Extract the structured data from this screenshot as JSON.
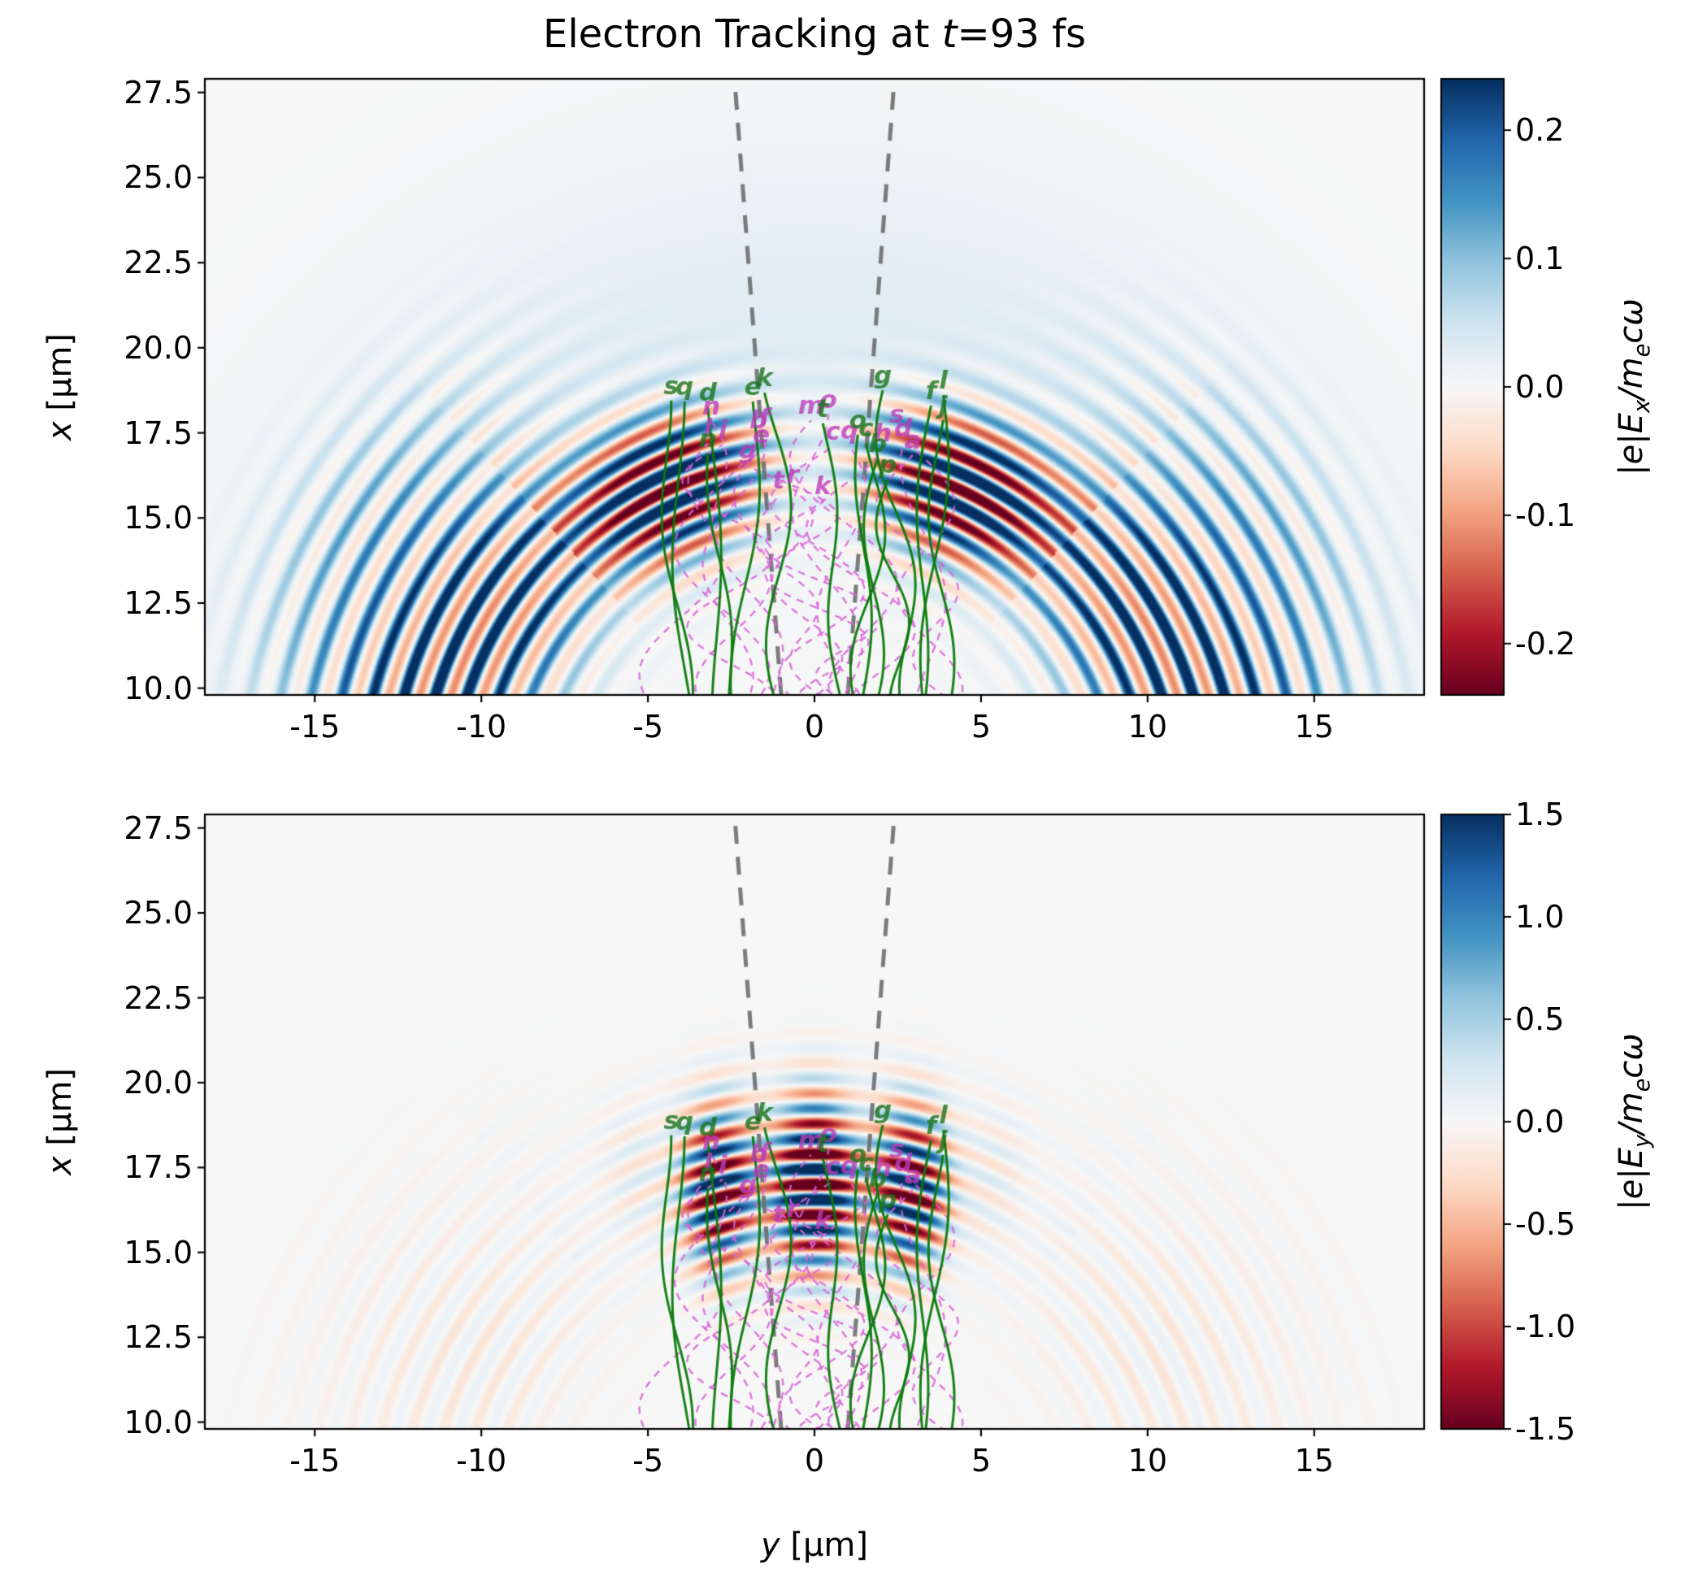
{
  "figure": {
    "title": {
      "prefix": "Electron Tracking at ",
      "var": "t",
      "suffix": "=93 fs"
    }
  },
  "chart_data": {
    "type": "heatmap",
    "title": "Electron Tracking at t=93 fs",
    "x_axis": {
      "label_var": "y",
      "label_unit": " [μm]",
      "tick_labels": [
        "-15",
        "-10",
        "-5",
        "0",
        "5",
        "10",
        "15"
      ],
      "lim": [
        -18.3,
        18.3
      ]
    },
    "y_axis": {
      "label_var": "x",
      "label_unit": " [μm]",
      "tick_labels": [
        "27.5",
        "25.0",
        "22.5",
        "20.0",
        "17.5",
        "15.0",
        "12.5",
        "10.0"
      ],
      "lim": [
        9.8,
        27.9
      ]
    },
    "panels": [
      {
        "name": "Ex",
        "field": "transverse field E_x: spherical wavefront arcs, strong side lobes, near-zero on axis",
        "colorbar": {
          "label_parts": {
            "p1": "|e|E",
            "s1": "x",
            "p2": "/m",
            "s2": "e",
            "p3": "cω"
          },
          "tick_labels": [
            "0.2",
            "0.1",
            "0.0",
            "-0.1",
            "-0.2"
          ],
          "vmin": -0.24,
          "vmax": 0.24,
          "cmap": "RdBu"
        }
      },
      {
        "name": "Ey",
        "field": "transverse field E_y: saturated stripe stack on axis, faint side arcs",
        "colorbar": {
          "label_parts": {
            "p1": "|e|E",
            "s1": "y",
            "p2": "/m",
            "s2": "e",
            "p3": "cω"
          },
          "tick_labels": [
            "1.5",
            "1.0",
            "0.5",
            "0.0",
            "-0.5",
            "-1.0",
            "-1.5"
          ],
          "vmin": -1.5,
          "vmax": 1.5,
          "cmap": "RdBu"
        }
      }
    ],
    "wave": {
      "wavelength_um": 0.9,
      "center": [
        0,
        6.2
      ]
    },
    "laser_cone": {
      "color": "#6e6e6e",
      "style": "dashed",
      "lines": [
        {
          "from": [
            -1.0,
            9.8
          ],
          "to": [
            -2.4,
            27.9
          ]
        },
        {
          "from": [
            1.0,
            9.8
          ],
          "to": [
            2.4,
            27.9
          ]
        }
      ]
    },
    "trajectories": {
      "green_solid": {
        "color": "#0a7a0a",
        "style": "solid",
        "items": [
          {
            "label": "s",
            "end": [
              -4.3,
              18.45
            ]
          },
          {
            "label": "q",
            "end": [
              -3.9,
              18.42
            ]
          },
          {
            "label": "d",
            "end": [
              -3.2,
              18.25
            ]
          },
          {
            "label": "e",
            "end": [
              -1.85,
              18.42
            ]
          },
          {
            "label": "k",
            "end": [
              -1.5,
              18.68
            ]
          },
          {
            "label": "n",
            "end": [
              -3.2,
              16.9
            ]
          },
          {
            "label": "t",
            "end": [
              0.25,
              17.78
            ]
          },
          {
            "label": "g",
            "end": [
              2.05,
              18.75
            ]
          },
          {
            "label": "o",
            "end": [
              1.3,
              17.45
            ]
          },
          {
            "label": "c",
            "end": [
              1.55,
              17.2
            ]
          },
          {
            "label": "b",
            "end": [
              1.9,
              16.75
            ]
          },
          {
            "label": "p",
            "end": [
              2.2,
              16.12
            ]
          },
          {
            "label": "f",
            "end": [
              3.5,
              18.3
            ]
          },
          {
            "label": "l",
            "end": [
              3.87,
              18.6
            ]
          },
          {
            "label": "j",
            "end": [
              3.86,
              17.87
            ]
          }
        ]
      },
      "magenta_dashed": {
        "color": "#bb3cbb",
        "style": "dashed",
        "items": [
          {
            "label": "a",
            "end": [
              2.95,
              16.85
            ]
          },
          {
            "label": "b",
            "end": [
              -1.68,
              17.45
            ]
          },
          {
            "label": "c",
            "end": [
              0.55,
              17.1
            ]
          },
          {
            "label": "d",
            "end": [
              2.66,
              17.2
            ]
          },
          {
            "label": "e",
            "end": [
              -1.6,
              17.0
            ]
          },
          {
            "label": "f",
            "end": [
              -1.5,
              17.52
            ]
          },
          {
            "label": "g",
            "end": [
              -2.0,
              16.55
            ]
          },
          {
            "label": "h",
            "end": [
              2.05,
              17.05
            ]
          },
          {
            "label": "i",
            "end": [
              -2.75,
              17.15
            ]
          },
          {
            "label": "k",
            "end": [
              0.25,
              15.5
            ]
          },
          {
            "label": "l",
            "end": [
              -3.2,
              17.2
            ]
          },
          {
            "label": "m",
            "end": [
              -0.1,
              17.87
            ]
          },
          {
            "label": "n",
            "end": [
              -3.1,
              17.85
            ]
          },
          {
            "label": "o",
            "end": [
              0.42,
              18.05
            ]
          },
          {
            "label": "q",
            "end": [
              1.05,
              17.12
            ]
          },
          {
            "label": "r",
            "end": [
              -0.65,
              15.85
            ]
          },
          {
            "label": "s",
            "end": [
              2.47,
              17.6
            ]
          },
          {
            "label": "t",
            "end": [
              -1.08,
              15.68
            ]
          }
        ]
      }
    }
  }
}
